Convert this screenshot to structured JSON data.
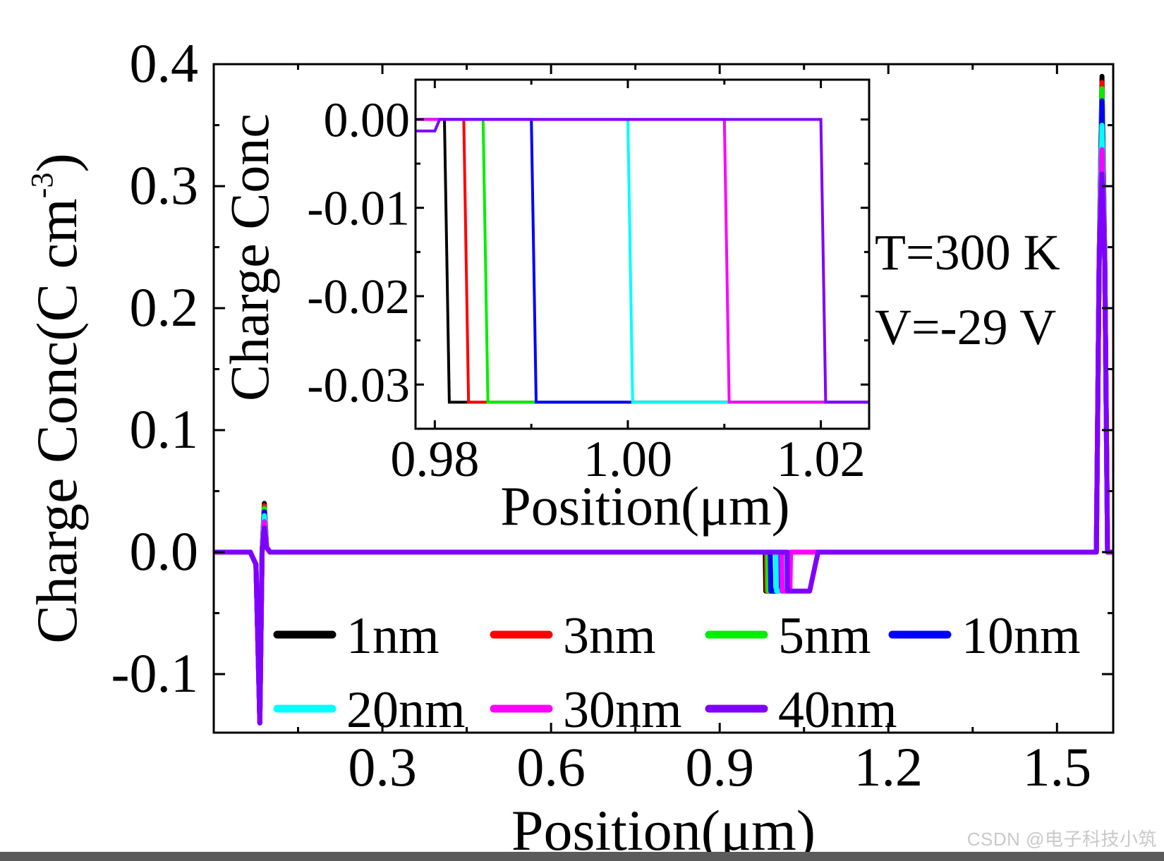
{
  "chart_data": [
    {
      "id": "main",
      "type": "line",
      "xlabel": "Position(μm)",
      "ylabel": "Charge Conc(C cm",
      "ylabel_sup": "-3",
      "ylabel_close": ")",
      "xlim": [
        0.0,
        1.6
      ],
      "ylim": [
        -0.148,
        0.4
      ],
      "xticks": [
        0.3,
        0.6,
        0.9,
        1.2,
        1.5
      ],
      "xtick_labels": [
        "0.3",
        "0.6",
        "0.9",
        "1.2",
        "1.5"
      ],
      "yticks": [
        -0.1,
        0.0,
        0.1,
        0.2,
        0.3,
        0.4
      ],
      "ytick_labels": [
        "-0.1",
        "0.0",
        "0.1",
        "0.2",
        "0.3",
        "0.4"
      ],
      "series": [
        {
          "name": "1nm",
          "color": "#000000",
          "x": [
            0.0,
            0.065,
            0.075,
            0.082,
            0.086,
            0.09,
            0.094,
            0.1,
            0.11,
            0.981,
            0.982,
            1.0,
            1.001,
            1.005,
            1.06,
            1.075,
            1.57,
            1.575,
            1.58,
            1.585,
            1.59,
            1.6
          ],
          "y": [
            0.0,
            0.0,
            -0.01,
            -0.14,
            0.0,
            0.04,
            0.004,
            0.0,
            0.0,
            0.0,
            -0.032,
            -0.032,
            0.0,
            0.0,
            0.0,
            0.0,
            0.0,
            0.24,
            0.39,
            0.24,
            0.0,
            0.0
          ]
        },
        {
          "name": "3nm",
          "color": "#ff0000",
          "x": [
            0.0,
            0.065,
            0.075,
            0.082,
            0.086,
            0.09,
            0.094,
            0.1,
            0.11,
            0.983,
            0.984,
            1.0,
            1.001,
            1.005,
            1.06,
            1.075,
            1.57,
            1.575,
            1.58,
            1.585,
            1.59,
            1.6
          ],
          "y": [
            0.0,
            0.0,
            -0.01,
            -0.14,
            0.0,
            0.038,
            0.004,
            0.0,
            0.0,
            0.0,
            -0.032,
            -0.032,
            0.0,
            0.0,
            0.0,
            0.0,
            0.0,
            0.24,
            0.385,
            0.24,
            0.0,
            0.0
          ]
        },
        {
          "name": "5nm",
          "color": "#00ee00",
          "x": [
            0.0,
            0.065,
            0.075,
            0.082,
            0.086,
            0.09,
            0.094,
            0.1,
            0.11,
            0.985,
            0.986,
            1.0,
            1.001,
            1.005,
            1.06,
            1.075,
            1.57,
            1.575,
            1.58,
            1.585,
            1.59,
            1.6
          ],
          "y": [
            0.0,
            0.0,
            -0.01,
            -0.14,
            0.0,
            0.036,
            0.004,
            0.0,
            0.0,
            0.0,
            -0.032,
            -0.032,
            0.0,
            0.0,
            0.0,
            0.0,
            0.0,
            0.24,
            0.38,
            0.24,
            0.0,
            0.0
          ]
        },
        {
          "name": "10nm",
          "color": "#0000ff",
          "x": [
            0.0,
            0.065,
            0.075,
            0.082,
            0.086,
            0.09,
            0.094,
            0.1,
            0.11,
            0.99,
            0.991,
            1.005,
            1.006,
            1.01,
            1.06,
            1.075,
            1.57,
            1.575,
            1.58,
            1.585,
            1.59,
            1.6
          ],
          "y": [
            0.0,
            0.0,
            -0.01,
            -0.14,
            0.0,
            0.033,
            0.004,
            0.0,
            0.0,
            0.0,
            -0.032,
            -0.032,
            0.0,
            0.0,
            0.0,
            0.0,
            0.0,
            0.24,
            0.37,
            0.24,
            0.0,
            0.0
          ]
        },
        {
          "name": "20nm",
          "color": "#00ffff",
          "x": [
            0.0,
            0.065,
            0.075,
            0.082,
            0.086,
            0.09,
            0.094,
            0.1,
            0.11,
            1.0,
            1.001,
            1.015,
            1.016,
            1.02,
            1.06,
            1.075,
            1.57,
            1.575,
            1.58,
            1.585,
            1.59,
            1.6
          ],
          "y": [
            0.0,
            0.0,
            -0.01,
            -0.14,
            0.0,
            0.03,
            0.004,
            0.0,
            0.0,
            0.0,
            -0.032,
            -0.032,
            0.0,
            0.0,
            0.0,
            0.0,
            0.0,
            0.24,
            0.35,
            0.24,
            0.0,
            0.0
          ]
        },
        {
          "name": "30nm",
          "color": "#ff00ff",
          "x": [
            0.0,
            0.065,
            0.075,
            0.082,
            0.086,
            0.09,
            0.094,
            0.1,
            0.11,
            1.01,
            1.011,
            1.025,
            1.026,
            1.03,
            1.06,
            1.075,
            1.57,
            1.575,
            1.58,
            1.585,
            1.59,
            1.6
          ],
          "y": [
            0.0,
            0.0,
            -0.01,
            -0.14,
            0.0,
            0.025,
            0.004,
            0.0,
            0.0,
            0.0,
            -0.032,
            -0.032,
            0.0,
            0.0,
            0.0,
            0.0,
            0.0,
            0.24,
            0.33,
            0.24,
            0.0,
            0.0
          ]
        },
        {
          "name": "40nm",
          "color": "#8000ff",
          "x": [
            0.0,
            0.065,
            0.075,
            0.082,
            0.086,
            0.09,
            0.094,
            0.1,
            0.11,
            1.02,
            1.0205,
            1.06,
            1.075,
            1.57,
            1.575,
            1.58,
            1.585,
            1.59,
            1.6
          ],
          "y": [
            0.0,
            0.0,
            -0.01,
            -0.14,
            0.0,
            0.02,
            0.004,
            0.0,
            0.0,
            0.0,
            -0.032,
            -0.032,
            0.0,
            0.0,
            0.24,
            0.31,
            0.24,
            0.0,
            0.0
          ]
        }
      ],
      "annotations": [
        "T=300 K",
        "V=-29 V"
      ],
      "legend_location": "lower-center",
      "legend_columns": 4,
      "grid": false
    },
    {
      "id": "inset",
      "type": "line",
      "xlabel": "Position(μm)",
      "ylabel": "Charge Conc",
      "xlim": [
        0.978,
        1.025
      ],
      "ylim": [
        -0.035,
        0.0045
      ],
      "xticks": [
        0.98,
        1.0,
        1.02
      ],
      "xtick_labels": [
        "0.98",
        "1.00",
        "1.02"
      ],
      "yticks": [
        0.0,
        -0.01,
        -0.02,
        -0.03
      ],
      "ytick_labels": [
        "0.00",
        "-0.01",
        "-0.02",
        "-0.03"
      ],
      "series": [
        {
          "name": "1nm",
          "color": "#000000",
          "x": [
            0.978,
            0.98,
            0.9805,
            0.981,
            0.9815,
            1.025
          ],
          "y": [
            0.0,
            0.0,
            0.0,
            0.0,
            -0.032,
            -0.032
          ]
        },
        {
          "name": "3nm",
          "color": "#ff0000",
          "x": [
            0.978,
            0.98,
            0.9805,
            0.983,
            0.9835,
            1.025
          ],
          "y": [
            0.0,
            0.0,
            0.0,
            0.0,
            -0.032,
            -0.032
          ]
        },
        {
          "name": "5nm",
          "color": "#00ee00",
          "x": [
            0.978,
            0.98,
            0.9805,
            0.985,
            0.9855,
            1.025
          ],
          "y": [
            0.0,
            0.0,
            0.0,
            0.0,
            -0.032,
            -0.032
          ]
        },
        {
          "name": "10nm",
          "color": "#0000ff",
          "x": [
            0.978,
            0.98,
            0.9805,
            0.99,
            0.9905,
            1.025
          ],
          "y": [
            0.0,
            0.0,
            0.0,
            0.0,
            -0.032,
            -0.032
          ]
        },
        {
          "name": "20nm",
          "color": "#00ffff",
          "x": [
            0.978,
            0.98,
            0.9805,
            1.0,
            1.0005,
            1.025
          ],
          "y": [
            0.0,
            0.0,
            0.0,
            0.0,
            -0.032,
            -0.032
          ]
        },
        {
          "name": "30nm",
          "color": "#ff00ff",
          "x": [
            0.978,
            0.98,
            0.9805,
            1.01,
            1.0105,
            1.025
          ],
          "y": [
            0.0,
            0.0,
            0.0,
            0.0,
            -0.032,
            -0.032
          ]
        },
        {
          "name": "40nm",
          "color": "#8000ff",
          "x": [
            0.978,
            0.98,
            0.9805,
            1.02,
            1.0205,
            1.025
          ],
          "y": [
            -0.0013,
            -0.0013,
            0.0,
            0.0,
            -0.032,
            -0.032
          ]
        }
      ]
    }
  ],
  "watermark": "CSDN @电子科技小筑"
}
